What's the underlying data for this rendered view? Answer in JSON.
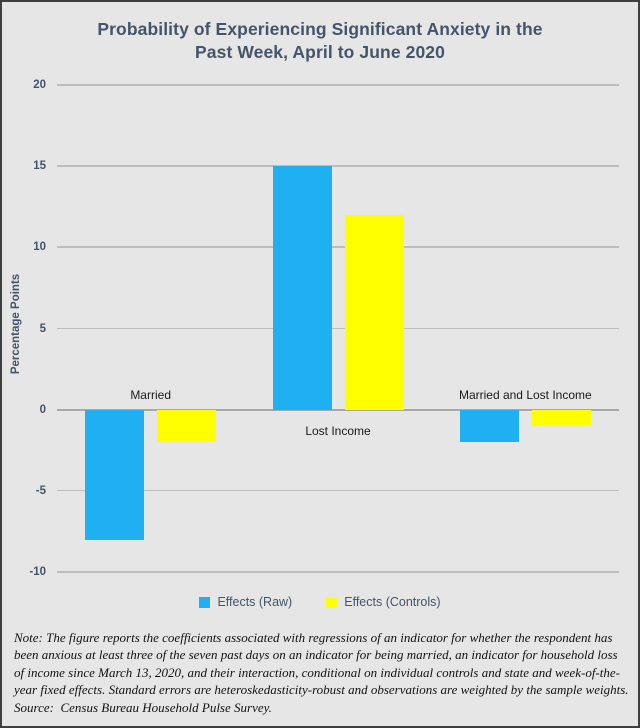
{
  "title_lines": [
    "Probability of Experiencing Significant Anxiety in the",
    "Past Week, April to June 2020"
  ],
  "chart_data": {
    "type": "bar",
    "title": "Probability of Experiencing Significant Anxiety in the Past Week, April to June 2020",
    "categories": [
      "Married",
      "Lost Income",
      "Married and Lost Income"
    ],
    "series": [
      {
        "name": "Effects (Raw)",
        "color": "#1FB0F2",
        "values": [
          -8,
          15,
          -2
        ]
      },
      {
        "name": "Effects (Controls)",
        "color": "#FFFF00",
        "values": [
          -2,
          12,
          -1
        ]
      }
    ],
    "xlabel": "",
    "ylabel": "Percentage Points",
    "ylim": [
      -10,
      20
    ],
    "yticks": [
      20,
      15,
      10,
      5,
      0,
      -5,
      -10
    ],
    "grid": true,
    "legend_position": "bottom"
  },
  "note": {
    "body": "Note: The figure reports the coefficients associated with regressions of an indicator for whether the respondent has been anxious at least three of the seven past days on an indicator for being married, an indicator for household loss of income since March 13, 2020, and their interaction, conditional on individual controls and state and week-of-the-year fixed effects. Standard errors are heteroskedasticity-robust and observations are weighted by the sample weights.",
    "source": "Source:  Census Bureau Household Pulse Survey."
  },
  "colors": {
    "background": "#E6E6E6",
    "border": "#3F3F3F",
    "title_text": "#44546A",
    "axis_text": "#44546A",
    "category_text": "#1A1A1A",
    "gridline": "#BDBDBD",
    "zero_line": "#A8A8A8",
    "series_raw": "#1FB0F2",
    "series_controls": "#FFFF00"
  }
}
